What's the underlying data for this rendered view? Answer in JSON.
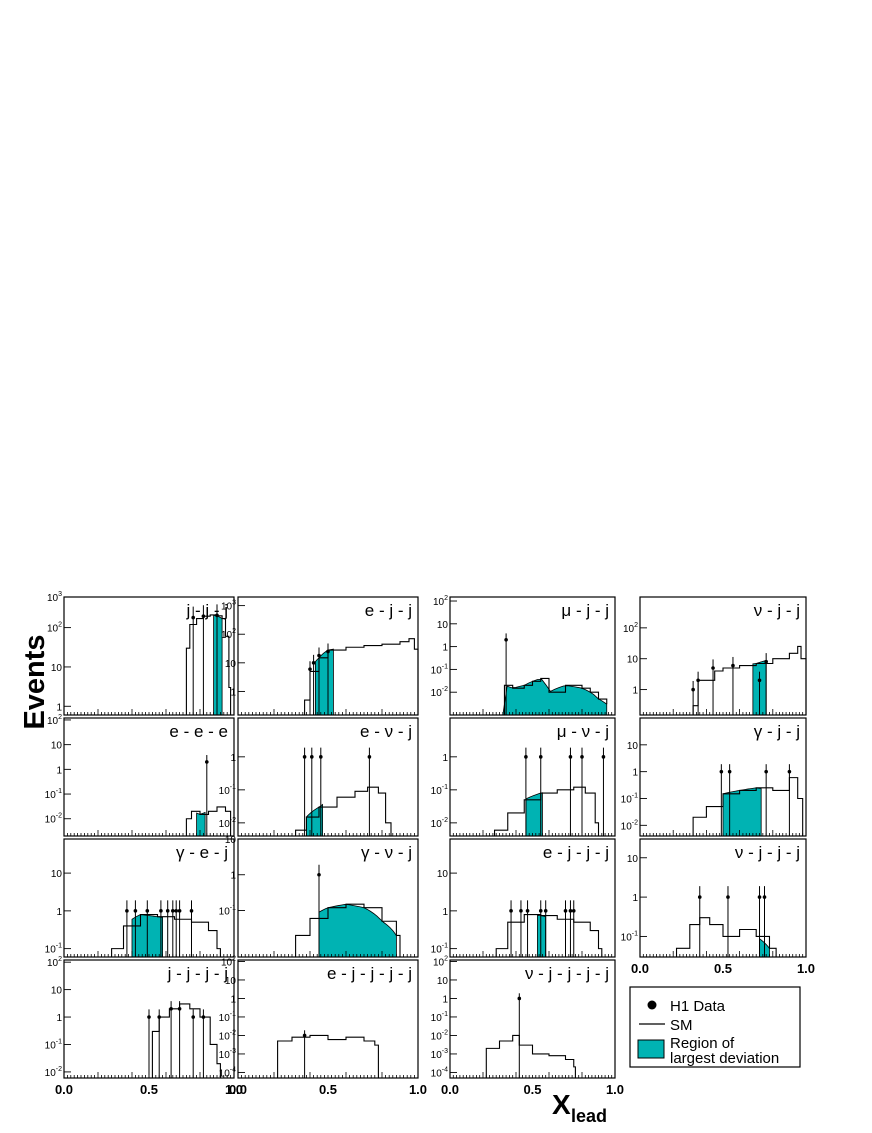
{
  "figure": {
    "ylabel": "Events",
    "xlabel": "X",
    "xlabel_sub": "lead",
    "legend": {
      "data": "H1 Data",
      "sm": "SM",
      "region_line1": "Region of",
      "region_line2": "largest deviation"
    },
    "colors": {
      "region": "#00b3b3",
      "line": "#000000"
    }
  },
  "chart_data": [
    {
      "type": "histogram",
      "title": "j - j - j",
      "ylim": [
        0.6,
        600
      ],
      "yticks": [
        "1",
        "10",
        "10^2",
        "10^3"
      ],
      "xlim": [
        0,
        1
      ],
      "sm": [
        [
          0.7,
          0
        ],
        [
          0.72,
          30
        ],
        [
          0.74,
          120
        ],
        [
          0.78,
          170
        ],
        [
          0.82,
          195
        ],
        [
          0.86,
          210
        ],
        [
          0.9,
          200
        ],
        [
          0.93,
          170
        ],
        [
          0.95,
          60
        ],
        [
          0.97,
          3
        ],
        [
          0.98,
          0
        ]
      ],
      "region": [
        0.88,
        0.93
      ],
      "data": [
        [
          0.76,
          180
        ],
        [
          0.82,
          195
        ],
        [
          0.9,
          205
        ]
      ]
    },
    {
      "type": "histogram",
      "title": "e - j - j",
      "ylim": [
        0.15,
        2000
      ],
      "yticks": [
        "1",
        "10",
        "10^2",
        "10^3"
      ],
      "xlim": [
        0,
        1
      ],
      "sm": [
        [
          0.35,
          0
        ],
        [
          0.37,
          0.5
        ],
        [
          0.4,
          5
        ],
        [
          0.45,
          15
        ],
        [
          0.5,
          28
        ],
        [
          0.6,
          35
        ],
        [
          0.7,
          40
        ],
        [
          0.8,
          45
        ],
        [
          0.9,
          55
        ],
        [
          0.95,
          70
        ],
        [
          0.98,
          30
        ],
        [
          1.0,
          0
        ]
      ],
      "region": [
        0.43,
        0.53
      ],
      "data": [
        [
          0.4,
          6
        ],
        [
          0.42,
          10
        ],
        [
          0.45,
          18
        ],
        [
          0.5,
          25
        ]
      ]
    },
    {
      "type": "histogram",
      "title": "μ - j - j",
      "ylim": [
        0.001,
        150
      ],
      "yticks": [
        "10^-2",
        "10^-1",
        "1",
        "10",
        "10^2"
      ],
      "xlim": [
        0,
        1
      ],
      "sm": [
        [
          0.32,
          0
        ],
        [
          0.33,
          0.02
        ],
        [
          0.38,
          0.015
        ],
        [
          0.45,
          0.02
        ],
        [
          0.5,
          0.03
        ],
        [
          0.55,
          0.04
        ],
        [
          0.6,
          0.01
        ],
        [
          0.7,
          0.02
        ],
        [
          0.8,
          0.015
        ],
        [
          0.85,
          0.01
        ],
        [
          0.9,
          0.005
        ],
        [
          0.95,
          0.003
        ]
      ],
      "region": [
        0.32,
        0.95
      ],
      "data": [
        [
          0.34,
          2
        ]
      ]
    },
    {
      "type": "histogram",
      "title": "ν - j - j",
      "ylim": [
        0.15,
        1000
      ],
      "yticks": [
        "1",
        "10",
        "10^2"
      ],
      "xlim": [
        0,
        1
      ],
      "sm": [
        [
          0.3,
          0
        ],
        [
          0.32,
          0.3
        ],
        [
          0.35,
          2
        ],
        [
          0.45,
          4
        ],
        [
          0.5,
          5
        ],
        [
          0.6,
          6
        ],
        [
          0.7,
          7
        ],
        [
          0.8,
          10
        ],
        [
          0.9,
          15
        ],
        [
          0.95,
          25
        ],
        [
          0.97,
          10
        ],
        [
          1.0,
          0
        ]
      ],
      "region": [
        0.68,
        0.76
      ],
      "data": [
        [
          0.32,
          1
        ],
        [
          0.35,
          2
        ],
        [
          0.44,
          5
        ],
        [
          0.56,
          6
        ],
        [
          0.72,
          2
        ],
        [
          0.76,
          8
        ]
      ]
    },
    {
      "type": "histogram",
      "title": "e - e - e",
      "ylim": [
        0.002,
        120
      ],
      "yticks": [
        "10^-2",
        "10^-1",
        "1",
        "10",
        "10^2"
      ],
      "xlim": [
        0,
        1
      ],
      "sm": [
        [
          0.7,
          0
        ],
        [
          0.72,
          0.01
        ],
        [
          0.75,
          0.02
        ],
        [
          0.8,
          0.015
        ],
        [
          0.85,
          0.02
        ],
        [
          0.9,
          0.03
        ],
        [
          0.95,
          0.02
        ],
        [
          0.98,
          0
        ]
      ],
      "region": [
        0.78,
        0.83
      ],
      "data": [
        [
          0.84,
          2
        ]
      ]
    },
    {
      "type": "histogram",
      "title": "e - ν - j",
      "ylim": [
        0.004,
        15
      ],
      "yticks": [
        "10^-2",
        "10^-1",
        "1"
      ],
      "xlim": [
        0,
        1
      ],
      "sm": [
        [
          0.3,
          0
        ],
        [
          0.32,
          0.006
        ],
        [
          0.38,
          0.015
        ],
        [
          0.45,
          0.03
        ],
        [
          0.55,
          0.06
        ],
        [
          0.65,
          0.09
        ],
        [
          0.72,
          0.12
        ],
        [
          0.78,
          0.08
        ],
        [
          0.82,
          0.01
        ],
        [
          0.85,
          0
        ]
      ],
      "region": [
        0.38,
        0.47
      ],
      "data": [
        [
          0.37,
          1
        ],
        [
          0.41,
          1
        ],
        [
          0.46,
          1
        ],
        [
          0.73,
          1
        ]
      ]
    },
    {
      "type": "histogram",
      "title": "μ - ν - j",
      "ylim": [
        0.004,
        15
      ],
      "yticks": [
        "10^-2",
        "10^-1",
        "1"
      ],
      "xlim": [
        0,
        1
      ],
      "sm": [
        [
          0.25,
          0
        ],
        [
          0.27,
          0.006
        ],
        [
          0.35,
          0.02
        ],
        [
          0.45,
          0.05
        ],
        [
          0.55,
          0.08
        ],
        [
          0.65,
          0.1
        ],
        [
          0.75,
          0.12
        ],
        [
          0.82,
          0.08
        ],
        [
          0.88,
          0.01
        ],
        [
          0.9,
          0
        ]
      ],
      "region": [
        0.46,
        0.56
      ],
      "data": [
        [
          0.46,
          1
        ],
        [
          0.55,
          1
        ],
        [
          0.73,
          1
        ],
        [
          0.8,
          1
        ],
        [
          0.93,
          1
        ]
      ]
    },
    {
      "type": "histogram",
      "title": "γ - j - j",
      "ylim": [
        0.004,
        100
      ],
      "yticks": [
        "10^-2",
        "10^-1",
        "1",
        "10"
      ],
      "xlim": [
        0,
        1
      ],
      "sm": [
        [
          0.3,
          0
        ],
        [
          0.32,
          0.02
        ],
        [
          0.4,
          0.05
        ],
        [
          0.5,
          0.15
        ],
        [
          0.6,
          0.2
        ],
        [
          0.7,
          0.25
        ],
        [
          0.8,
          0.2
        ],
        [
          0.9,
          0.6
        ],
        [
          0.95,
          0.1
        ],
        [
          0.98,
          0
        ]
      ],
      "region": [
        0.5,
        0.73
      ],
      "data": [
        [
          0.49,
          1
        ],
        [
          0.54,
          1
        ],
        [
          0.76,
          1
        ],
        [
          0.9,
          1
        ]
      ]
    },
    {
      "type": "histogram",
      "title": "γ - e - j",
      "ylim": [
        0.06,
        80
      ],
      "yticks": [
        "10^-1",
        "1",
        "10"
      ],
      "xlim": [
        0,
        1
      ],
      "sm": [
        [
          0.25,
          0
        ],
        [
          0.28,
          0.1
        ],
        [
          0.35,
          0.4
        ],
        [
          0.45,
          0.8
        ],
        [
          0.55,
          0.7
        ],
        [
          0.65,
          0.6
        ],
        [
          0.75,
          0.5
        ],
        [
          0.85,
          0.3
        ],
        [
          0.9,
          0.1
        ],
        [
          0.92,
          0
        ]
      ],
      "region": [
        0.4,
        0.58
      ],
      "data": [
        [
          0.37,
          1
        ],
        [
          0.42,
          1
        ],
        [
          0.49,
          1
        ],
        [
          0.57,
          1
        ],
        [
          0.61,
          1
        ],
        [
          0.64,
          1
        ],
        [
          0.66,
          1
        ],
        [
          0.68,
          1
        ],
        [
          0.75,
          1
        ]
      ]
    },
    {
      "type": "histogram",
      "title": "γ - ν - j",
      "ylim": [
        0.005,
        10
      ],
      "yticks": [
        "10^-1",
        "1",
        "10"
      ],
      "xlim": [
        0,
        1
      ],
      "sm": [
        [
          0.3,
          0
        ],
        [
          0.32,
          0.02
        ],
        [
          0.4,
          0.06
        ],
        [
          0.5,
          0.12
        ],
        [
          0.6,
          0.15
        ],
        [
          0.7,
          0.12
        ],
        [
          0.8,
          0.05
        ],
        [
          0.88,
          0.02
        ],
        [
          0.9,
          0
        ]
      ],
      "region": [
        0.45,
        0.88
      ],
      "data": [
        [
          0.45,
          1
        ]
      ]
    },
    {
      "type": "histogram",
      "title": "e - j - j - j",
      "ylim": [
        0.06,
        80
      ],
      "yticks": [
        "10^-1",
        "1",
        "10"
      ],
      "xlim": [
        0,
        1
      ],
      "sm": [
        [
          0.25,
          0
        ],
        [
          0.28,
          0.1
        ],
        [
          0.35,
          0.5
        ],
        [
          0.45,
          0.8
        ],
        [
          0.55,
          0.75
        ],
        [
          0.65,
          0.6
        ],
        [
          0.75,
          0.5
        ],
        [
          0.85,
          0.3
        ],
        [
          0.9,
          0.1
        ],
        [
          0.92,
          0
        ]
      ],
      "region": [
        0.53,
        0.58
      ],
      "data": [
        [
          0.37,
          1
        ],
        [
          0.43,
          1
        ],
        [
          0.47,
          1
        ],
        [
          0.55,
          1
        ],
        [
          0.58,
          1
        ],
        [
          0.7,
          1
        ],
        [
          0.73,
          1
        ],
        [
          0.75,
          1
        ]
      ]
    },
    {
      "type": "histogram",
      "title": "ν - j - j - j",
      "ylim": [
        0.03,
        30
      ],
      "yticks": [
        "10^-1",
        "1",
        "10"
      ],
      "xlim": [
        0,
        1
      ],
      "sm": [
        [
          0.2,
          0
        ],
        [
          0.22,
          0.05
        ],
        [
          0.3,
          0.2
        ],
        [
          0.36,
          0.3
        ],
        [
          0.42,
          0.2
        ],
        [
          0.5,
          0.1
        ],
        [
          0.6,
          0.15
        ],
        [
          0.7,
          0.1
        ],
        [
          0.78,
          0.05
        ],
        [
          0.82,
          0
        ]
      ],
      "region": [
        0.72,
        0.78
      ],
      "data": [
        [
          0.36,
          1
        ],
        [
          0.53,
          1
        ],
        [
          0.72,
          1
        ],
        [
          0.75,
          1
        ]
      ]
    },
    {
      "type": "histogram",
      "title": "j - j - j - j",
      "ylim": [
        0.006,
        120
      ],
      "yticks": [
        "10^-2",
        "10^-1",
        "1",
        "10",
        "10^2"
      ],
      "xlim": [
        0,
        1
      ],
      "sm": [
        [
          0.5,
          0
        ],
        [
          0.52,
          0.3
        ],
        [
          0.56,
          1
        ],
        [
          0.62,
          2
        ],
        [
          0.68,
          3
        ],
        [
          0.74,
          2
        ],
        [
          0.8,
          1
        ],
        [
          0.86,
          0.1
        ],
        [
          0.9,
          0.02
        ],
        [
          0.92,
          0
        ]
      ],
      "region": null,
      "data": [
        [
          0.5,
          1
        ],
        [
          0.56,
          1
        ],
        [
          0.63,
          2
        ],
        [
          0.68,
          2
        ],
        [
          0.76,
          1
        ],
        [
          0.82,
          1
        ]
      ]
    },
    {
      "type": "histogram",
      "title": "e - j - j - j - j",
      "ylim": [
        5e-05,
        120
      ],
      "yticks": [
        "10^-4",
        "10^-3",
        "10^-2",
        "10^-1",
        "1",
        "10",
        "10^2"
      ],
      "xlim": [
        0,
        1
      ],
      "sm": [
        [
          0.2,
          0
        ],
        [
          0.22,
          0.005
        ],
        [
          0.3,
          0.008
        ],
        [
          0.4,
          0.01
        ],
        [
          0.5,
          0.006
        ],
        [
          0.6,
          0.008
        ],
        [
          0.7,
          0.005
        ],
        [
          0.76,
          0.003
        ],
        [
          0.78,
          0
        ]
      ],
      "region": null,
      "data": [
        [
          0.37,
          0.01
        ]
      ]
    },
    {
      "type": "histogram",
      "title": "ν - j - j - j - j",
      "ylim": [
        5e-05,
        120
      ],
      "yticks": [
        "10^-4",
        "10^-3",
        "10^-2",
        "10^-1",
        "1",
        "10",
        "10^2"
      ],
      "xlim": [
        0,
        1
      ],
      "sm": [
        [
          0.2,
          0
        ],
        [
          0.22,
          0.002
        ],
        [
          0.3,
          0.005
        ],
        [
          0.38,
          0.01
        ],
        [
          0.42,
          0.003
        ],
        [
          0.5,
          0.001
        ],
        [
          0.6,
          0.0008
        ],
        [
          0.7,
          0.0005
        ],
        [
          0.75,
          0.0002
        ],
        [
          0.76,
          0
        ]
      ],
      "region": null,
      "data": [
        [
          0.42,
          1
        ]
      ]
    }
  ],
  "xticks": [
    "0.0",
    "0.5",
    "1.0"
  ]
}
